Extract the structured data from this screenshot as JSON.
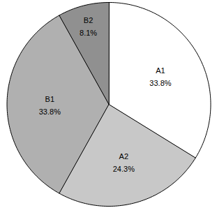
{
  "chart_data": {
    "type": "pie",
    "categories": [
      "A1",
      "A2",
      "B1",
      "B2"
    ],
    "values": [
      33.8,
      24.3,
      33.8,
      8.1
    ],
    "value_labels": [
      "33.8%",
      "24.3%",
      "33.8%",
      "8.1%"
    ],
    "data_labels": true,
    "colors": [
      "#ffffff",
      "#c8c8c8",
      "#b0b0b0",
      "#909090"
    ]
  }
}
